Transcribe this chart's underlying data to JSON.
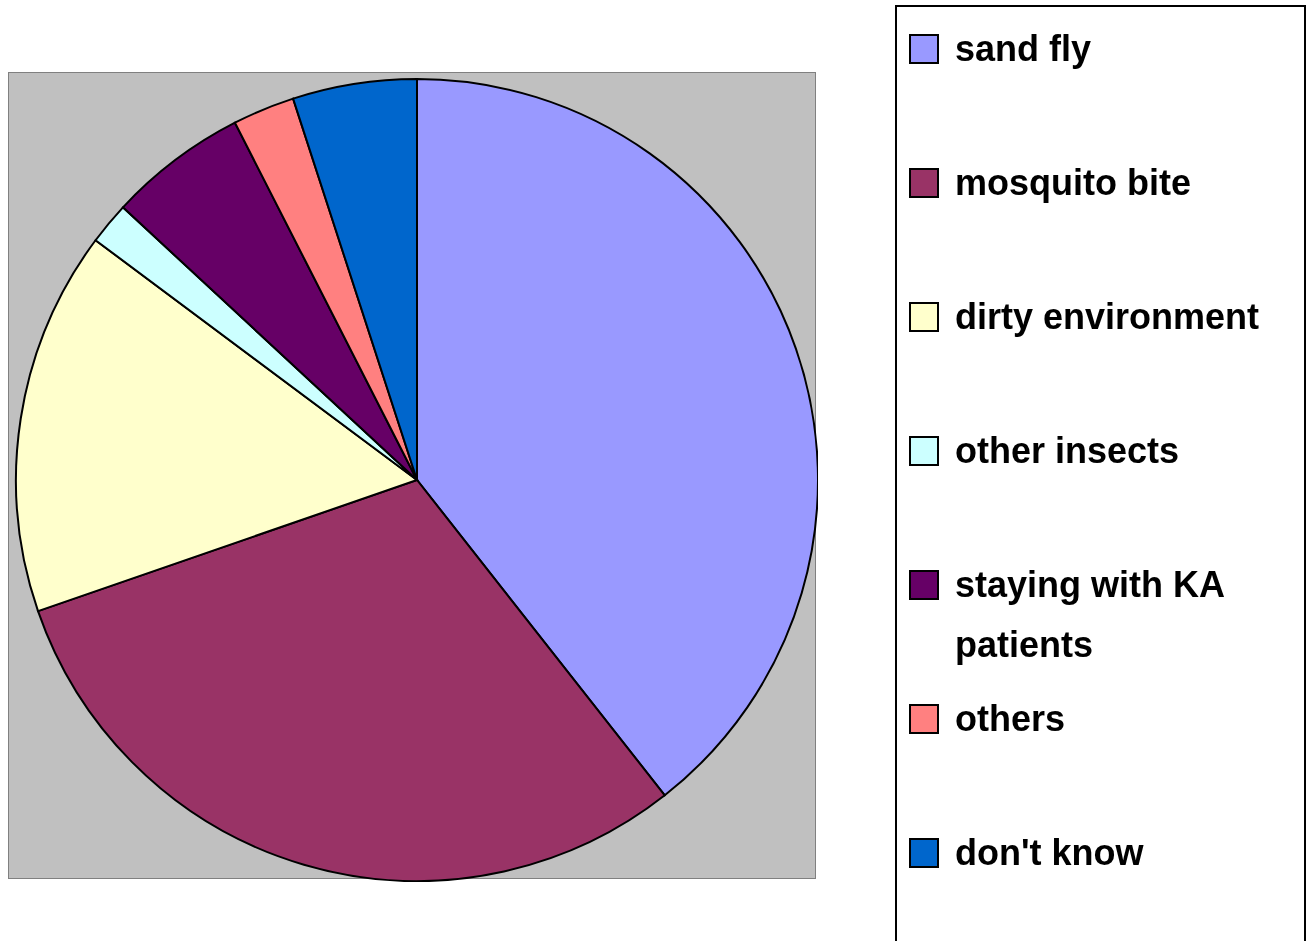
{
  "chart_data": {
    "type": "pie",
    "categories": [
      "sand fly",
      "mosquito bite",
      "dirty environment",
      "other insects",
      "staying with KA patients",
      "others",
      "don't know"
    ],
    "values": [
      39.4,
      30.3,
      15.5,
      1.7,
      5.6,
      2.5,
      5.0
    ],
    "colors": [
      "#9999ff",
      "#993366",
      "#ffffcc",
      "#ccffff",
      "#660066",
      "#ff8080",
      "#0066cc"
    ],
    "legend": "right"
  }
}
